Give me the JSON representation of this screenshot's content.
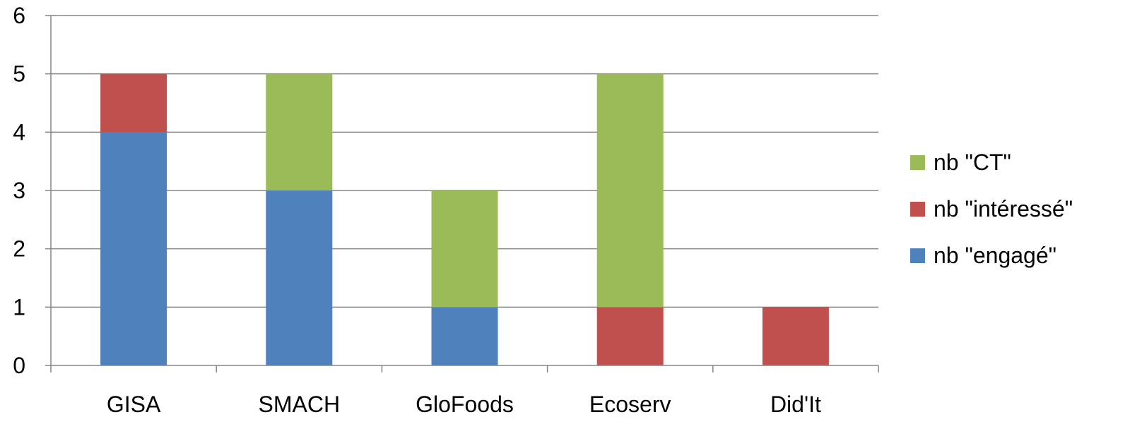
{
  "chart_data": {
    "type": "bar",
    "stacked": true,
    "categories": [
      "GISA",
      "SMACH",
      "GloFoods",
      "Ecoserv",
      "Did'It"
    ],
    "series": [
      {
        "name": "nb \"engagé\"",
        "values": [
          4,
          3,
          1,
          0,
          0
        ],
        "color": "#4F81BD"
      },
      {
        "name": "nb \"intéressé\"",
        "values": [
          1,
          0,
          0,
          1,
          1
        ],
        "color": "#C0504D"
      },
      {
        "name": "nb \"CT\"",
        "values": [
          0,
          2,
          2,
          4,
          0
        ],
        "color": "#9BBB59"
      }
    ],
    "ylim": [
      0,
      6
    ],
    "yticks": [
      "0",
      "1",
      "2",
      "3",
      "4",
      "5",
      "6"
    ],
    "grid": true,
    "legend_position": "right",
    "legend_order": [
      "nb \"CT\"",
      "nb \"intéressé\"",
      "nb \"engagé\""
    ]
  }
}
